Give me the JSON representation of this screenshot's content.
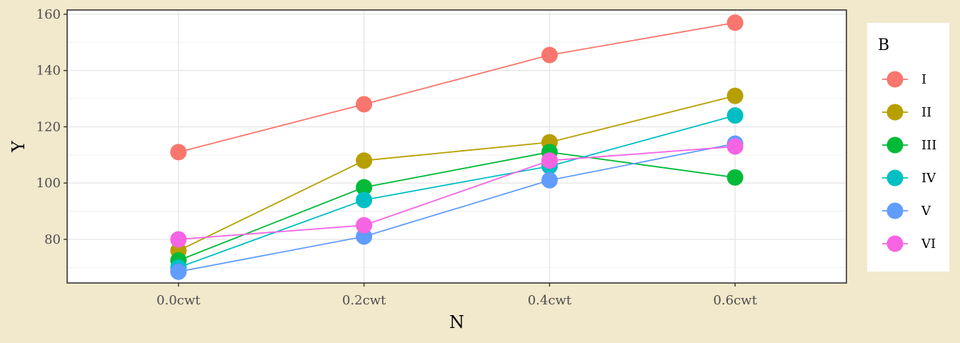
{
  "chart_data": {
    "type": "line",
    "xlabel": "N",
    "ylabel": "Y",
    "categories": [
      "0.0cwt",
      "0.2cwt",
      "0.4cwt",
      "0.6cwt"
    ],
    "ylim": [
      64.5,
      161.5
    ],
    "yticks": [
      80,
      100,
      120,
      140,
      160
    ],
    "grid": true,
    "legend": {
      "title": "B",
      "position": "right"
    },
    "series": [
      {
        "name": "I",
        "color": "#F8766D",
        "values": [
          111,
          128,
          145.5,
          157
        ]
      },
      {
        "name": "II",
        "color": "#B79F00",
        "values": [
          76,
          108,
          114.5,
          131
        ]
      },
      {
        "name": "III",
        "color": "#00BA38",
        "values": [
          72.5,
          98.5,
          111,
          102
        ]
      },
      {
        "name": "IV",
        "color": "#00BFC4",
        "values": [
          70,
          94,
          106,
          124
        ]
      },
      {
        "name": "V",
        "color": "#619CFF",
        "values": [
          68.5,
          81,
          101,
          114
        ]
      },
      {
        "name": "VI",
        "color": "#F564E3",
        "values": [
          80,
          85,
          108,
          113
        ]
      }
    ]
  }
}
